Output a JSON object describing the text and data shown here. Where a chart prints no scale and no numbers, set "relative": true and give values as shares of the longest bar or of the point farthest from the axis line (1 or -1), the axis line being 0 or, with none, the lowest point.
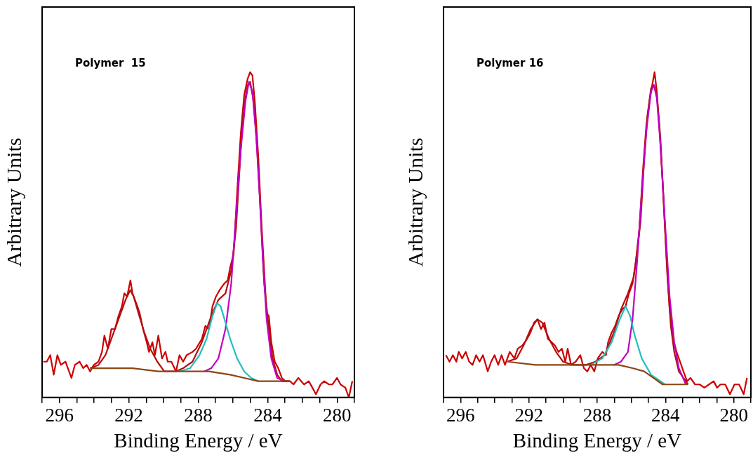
{
  "chart_data": [
    {
      "type": "line",
      "title": "Polymer  15",
      "xlabel": "Binding Energy / eV",
      "ylabel": "Arbitrary Units",
      "relative": true,
      "legend": false,
      "grid": false,
      "marker": "none",
      "line_style": "solid",
      "xlim": [
        297,
        279
      ],
      "xticks": [
        {
          "value": 297,
          "label": null
        },
        296,
        {
          "value": 295,
          "label": null
        },
        {
          "value": 294,
          "label": null
        },
        {
          "value": 293,
          "label": null
        },
        292,
        {
          "value": 291,
          "label": null
        },
        {
          "value": 290,
          "label": null
        },
        {
          "value": 289,
          "label": null
        },
        288,
        {
          "value": 287,
          "label": null
        },
        {
          "value": 286,
          "label": null
        },
        {
          "value": 285,
          "label": null
        },
        284,
        {
          "value": 283,
          "label": null
        },
        {
          "value": 282,
          "label": null
        },
        {
          "value": 281,
          "label": null
        },
        280,
        {
          "value": 279,
          "label": null
        }
      ],
      "series": [
        {
          "color": "#8b4513",
          "x": [
            294.23,
            293.01,
            291.79,
            290.3,
            288.87,
            287.38,
            286.16,
            285.35,
            284.54,
            283.59,
            282.71
          ],
          "values": [
            0.09,
            0.09,
            0.09,
            0.08,
            0.08,
            0.08,
            0.07,
            0.06,
            0.05,
            0.05,
            0.05
          ]
        },
        {
          "color": "#20c0c0",
          "x": [
            289.08,
            288.47,
            287.93,
            287.52,
            287.18,
            286.91,
            286.71,
            286.43,
            286.16,
            285.76,
            285.35,
            284.95,
            284.54
          ],
          "values": [
            0.08,
            0.09,
            0.13,
            0.18,
            0.25,
            0.29,
            0.28,
            0.23,
            0.18,
            0.12,
            0.08,
            0.06,
            0.05
          ]
        },
        {
          "color": "#c000c0",
          "x": [
            287.65,
            287.25,
            286.84,
            286.43,
            286.1,
            285.82,
            285.55,
            285.28,
            285.08,
            284.88,
            284.67,
            284.47,
            284.27,
            284.06,
            283.79,
            283.45,
            283.05
          ],
          "values": [
            0.08,
            0.09,
            0.12,
            0.21,
            0.35,
            0.56,
            0.76,
            0.91,
            0.97,
            0.94,
            0.81,
            0.63,
            0.42,
            0.24,
            0.12,
            0.06,
            0.05
          ]
        },
        {
          "color": "#b01010",
          "x": [
            294.23,
            293.75,
            293.35,
            292.94,
            292.53,
            292.19,
            291.92,
            291.72,
            291.45,
            291.11,
            290.77,
            290.36,
            289.96,
            289.28,
            288.87,
            288.33,
            287.79,
            287.25,
            286.84,
            286.43,
            286.1,
            285.82,
            285.62,
            285.42,
            285.15,
            285.01,
            284.81,
            284.61,
            284.4,
            284.2,
            283.93,
            283.72,
            283.45,
            283.18,
            282.77
          ],
          "values": [
            0.09,
            0.1,
            0.13,
            0.19,
            0.25,
            0.3,
            0.33,
            0.31,
            0.26,
            0.2,
            0.15,
            0.11,
            0.08,
            0.08,
            0.09,
            0.11,
            0.17,
            0.25,
            0.3,
            0.32,
            0.39,
            0.52,
            0.7,
            0.88,
            0.96,
            0.97,
            0.91,
            0.77,
            0.56,
            0.35,
            0.21,
            0.12,
            0.07,
            0.05,
            0.05
          ]
        },
        {
          "color": "#cc0000",
          "x": [
            296.94,
            296.73,
            296.53,
            296.33,
            296.12,
            295.92,
            295.65,
            295.31,
            295.11,
            294.84,
            294.63,
            294.43,
            294.23,
            294.02,
            293.75,
            293.55,
            293.41,
            293.21,
            293.01,
            292.8,
            292.6,
            292.4,
            292.26,
            292.1,
            291.91,
            291.79,
            291.58,
            291.38,
            291.18,
            290.97,
            290.84,
            290.64,
            290.5,
            290.3,
            290.09,
            289.89,
            289.76,
            289.55,
            289.28,
            289.08,
            288.87,
            288.67,
            288.33,
            288.13,
            287.79,
            287.59,
            287.38,
            287.18,
            286.98,
            286.77,
            286.5,
            286.3,
            286.16,
            285.96,
            285.76,
            285.55,
            285.35,
            285.15,
            285.01,
            284.88,
            284.74,
            284.54,
            284.34,
            284.06,
            283.93,
            283.79,
            283.59,
            283.39,
            283.18,
            282.98,
            282.71,
            282.51,
            282.23,
            281.9,
            281.63,
            281.42,
            281.22,
            280.95,
            280.74,
            280.47,
            280.27,
            280.0,
            279.8,
            279.52,
            279.32,
            279.12
          ],
          "values": [
            0.11,
            0.11,
            0.13,
            0.07,
            0.13,
            0.1,
            0.11,
            0.06,
            0.1,
            0.11,
            0.09,
            0.1,
            0.08,
            0.1,
            0.11,
            0.14,
            0.19,
            0.15,
            0.21,
            0.21,
            0.25,
            0.28,
            0.32,
            0.31,
            0.36,
            0.32,
            0.29,
            0.26,
            0.21,
            0.17,
            0.14,
            0.17,
            0.13,
            0.19,
            0.12,
            0.14,
            0.11,
            0.11,
            0.08,
            0.13,
            0.11,
            0.13,
            0.14,
            0.15,
            0.18,
            0.22,
            0.21,
            0.28,
            0.31,
            0.33,
            0.35,
            0.36,
            0.4,
            0.44,
            0.63,
            0.81,
            0.93,
            0.98,
            1.0,
            0.99,
            0.91,
            0.74,
            0.52,
            0.26,
            0.25,
            0.17,
            0.11,
            0.09,
            0.06,
            0.05,
            0.05,
            0.04,
            0.06,
            0.04,
            0.05,
            0.03,
            0.01,
            0.04,
            0.05,
            0.04,
            0.04,
            0.06,
            0.04,
            0.03,
            0.0,
            0.05
          ]
        }
      ]
    },
    {
      "type": "line",
      "title": "Polymer 16",
      "xlabel": "Binding Energy / eV",
      "ylabel": "Arbitrary Units",
      "relative": true,
      "legend": false,
      "grid": false,
      "marker": "none",
      "line_style": "solid",
      "xlim": [
        297,
        279
      ],
      "xticks": [
        {
          "value": 297,
          "label": null
        },
        296,
        {
          "value": 295,
          "label": null
        },
        {
          "value": 294,
          "label": null
        },
        {
          "value": 293,
          "label": null
        },
        292,
        {
          "value": 291,
          "label": null
        },
        {
          "value": 290,
          "label": null
        },
        {
          "value": 289,
          "label": null
        },
        288,
        {
          "value": 287,
          "label": null
        },
        {
          "value": 286,
          "label": null
        },
        {
          "value": 285,
          "label": null
        },
        284,
        {
          "value": 283,
          "label": null
        },
        {
          "value": 282,
          "label": null
        },
        {
          "value": 281,
          "label": null
        },
        280,
        {
          "value": 279,
          "label": null
        }
      ],
      "series": [
        {
          "color": "#8b4513",
          "x": [
            293.26,
            291.63,
            290.27,
            288.92,
            287.56,
            286.75,
            285.93,
            285.25,
            284.71,
            284.17,
            283.49,
            282.68
          ],
          "values": [
            0.11,
            0.1,
            0.1,
            0.1,
            0.1,
            0.1,
            0.09,
            0.08,
            0.06,
            0.04,
            0.04,
            0.04
          ]
        },
        {
          "color": "#20c0c0",
          "x": [
            288.38,
            287.7,
            287.15,
            286.68,
            286.34,
            286.07,
            285.8,
            285.39,
            284.85,
            284.3,
            284.03
          ],
          "values": [
            0.1,
            0.12,
            0.17,
            0.24,
            0.28,
            0.25,
            0.19,
            0.12,
            0.07,
            0.05,
            0.04
          ]
        },
        {
          "color": "#c000c0",
          "x": [
            287.02,
            286.61,
            286.2,
            285.93,
            285.66,
            285.39,
            285.12,
            284.85,
            284.68,
            284.51,
            284.3,
            284.03,
            283.76,
            283.49,
            283.22,
            282.81
          ],
          "values": [
            0.1,
            0.11,
            0.14,
            0.24,
            0.42,
            0.63,
            0.82,
            0.94,
            0.96,
            0.92,
            0.78,
            0.54,
            0.31,
            0.17,
            0.09,
            0.04
          ]
        },
        {
          "color": "#b01010",
          "x": [
            293.26,
            292.72,
            292.31,
            291.9,
            291.5,
            291.22,
            290.82,
            290.41,
            290.0,
            289.46,
            288.65,
            288.1,
            287.56,
            287.02,
            286.61,
            286.2,
            285.86,
            285.66,
            285.46,
            285.25,
            285.05,
            284.85,
            284.68,
            284.51,
            284.3,
            284.1,
            283.9,
            283.69,
            283.49,
            283.22,
            282.95,
            282.68
          ],
          "values": [
            0.11,
            0.12,
            0.16,
            0.21,
            0.24,
            0.23,
            0.18,
            0.14,
            0.11,
            0.1,
            0.1,
            0.11,
            0.13,
            0.2,
            0.27,
            0.32,
            0.37,
            0.45,
            0.54,
            0.73,
            0.87,
            0.95,
            0.96,
            0.93,
            0.8,
            0.59,
            0.38,
            0.22,
            0.14,
            0.08,
            0.06,
            0.04
          ]
        },
        {
          "color": "#cc0000",
          "x": [
            296.86,
            296.65,
            296.45,
            296.25,
            296.11,
            295.91,
            295.7,
            295.5,
            295.3,
            295.09,
            294.89,
            294.69,
            294.41,
            294.21,
            294.01,
            293.8,
            293.6,
            293.4,
            293.12,
            292.85,
            292.65,
            292.38,
            292.11,
            291.9,
            291.7,
            291.5,
            291.29,
            291.09,
            290.89,
            290.68,
            290.48,
            290.27,
            290.07,
            289.87,
            289.73,
            289.53,
            289.26,
            288.99,
            288.78,
            288.58,
            288.38,
            288.17,
            287.97,
            287.7,
            287.49,
            287.36,
            287.15,
            286.95,
            286.75,
            286.54,
            286.34,
            286.14,
            285.93,
            285.73,
            285.53,
            285.32,
            285.12,
            284.91,
            284.78,
            284.64,
            284.51,
            284.37,
            284.17,
            283.96,
            283.76,
            283.56,
            283.35,
            283.15,
            282.95,
            282.74,
            282.54,
            282.27,
            282.0,
            281.73,
            281.45,
            281.18,
            280.98,
            280.78,
            280.5,
            280.23,
            279.96,
            279.69,
            279.42,
            279.23
          ],
          "values": [
            0.13,
            0.11,
            0.13,
            0.11,
            0.14,
            0.12,
            0.14,
            0.11,
            0.1,
            0.13,
            0.11,
            0.13,
            0.08,
            0.11,
            0.13,
            0.1,
            0.13,
            0.1,
            0.14,
            0.12,
            0.15,
            0.16,
            0.18,
            0.2,
            0.23,
            0.24,
            0.21,
            0.23,
            0.18,
            0.17,
            0.16,
            0.14,
            0.15,
            0.11,
            0.15,
            0.1,
            0.11,
            0.13,
            0.09,
            0.08,
            0.1,
            0.08,
            0.12,
            0.14,
            0.13,
            0.17,
            0.2,
            0.22,
            0.25,
            0.27,
            0.28,
            0.32,
            0.35,
            0.42,
            0.52,
            0.7,
            0.84,
            0.92,
            0.96,
            1.0,
            0.94,
            0.84,
            0.66,
            0.45,
            0.27,
            0.18,
            0.14,
            0.11,
            0.08,
            0.05,
            0.06,
            0.04,
            0.04,
            0.03,
            0.04,
            0.05,
            0.03,
            0.04,
            0.04,
            0.01,
            0.04,
            0.04,
            0.01,
            0.06
          ]
        }
      ]
    }
  ]
}
